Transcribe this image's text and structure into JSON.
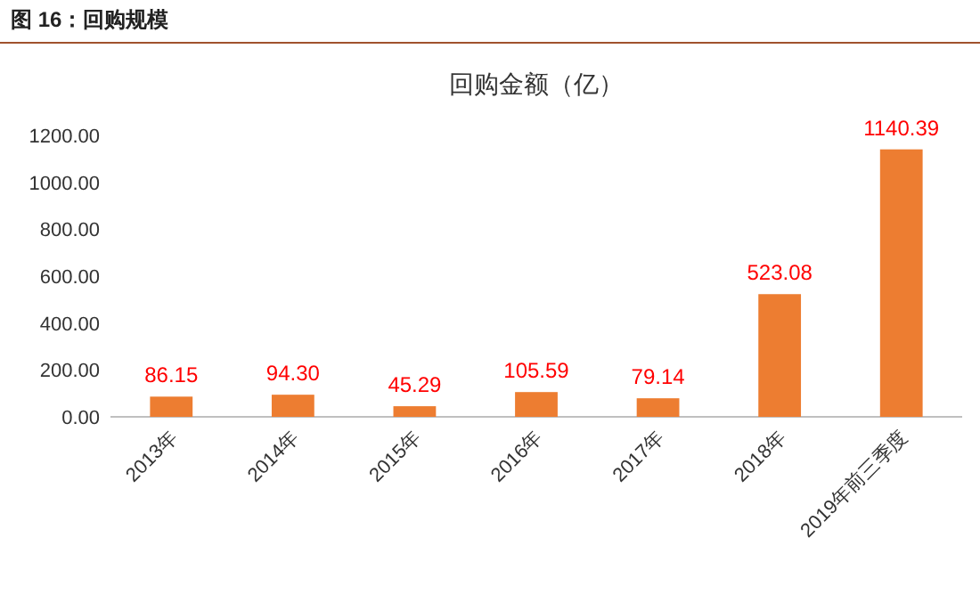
{
  "chart_data": {
    "type": "bar",
    "title": "图 16：回购规模",
    "subtitle": "回购金额（亿）",
    "categories": [
      "2013年",
      "2014年",
      "2015年",
      "2016年",
      "2017年",
      "2018年",
      "2019年前三季度"
    ],
    "values": [
      86.15,
      94.3,
      45.29,
      105.59,
      79.14,
      523.08,
      1140.39
    ],
    "value_labels": [
      "86.15",
      "94.30",
      "45.29",
      "105.59",
      "79.14",
      "523.08",
      "1140.39"
    ],
    "color": "#ed7d31",
    "ylim": [
      0,
      1200
    ],
    "yticks": [
      {
        "value": 0,
        "label": "0.00"
      },
      {
        "value": 200,
        "label": "200.00"
      },
      {
        "value": 400,
        "label": "400.00"
      },
      {
        "value": 600,
        "label": "600.00"
      },
      {
        "value": 800,
        "label": "800.00"
      },
      {
        "value": 1000,
        "label": "1000.00"
      },
      {
        "value": 1200,
        "label": "1200.00"
      }
    ]
  }
}
